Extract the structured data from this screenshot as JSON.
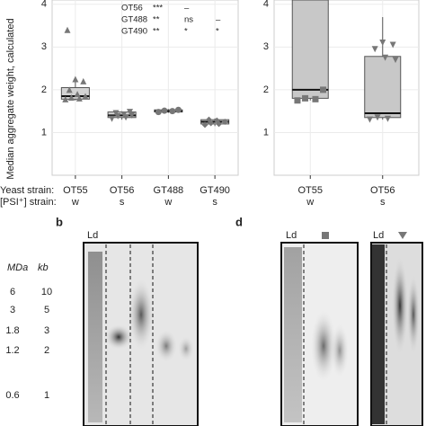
{
  "chart_data": [
    {
      "type": "box",
      "y_label": "Median aggregate weight, calculated",
      "categories": [
        "OT55",
        "OT56",
        "GT488",
        "GT490"
      ],
      "psi": [
        "w",
        "s",
        "w",
        "s"
      ],
      "ylim": [
        0,
        4.1
      ],
      "yticks": [
        1,
        2,
        3,
        4
      ],
      "color": "#d3d3d3",
      "markers": [
        "triangle",
        "triangle-down",
        "circle",
        "diamond"
      ],
      "marker_color": "#777777",
      "boxes": [
        {
          "whisker_low": 1.75,
          "q1": 1.78,
          "median": 1.85,
          "q3": 2.05,
          "whisker_high": 2.25
        },
        {
          "whisker_low": 1.3,
          "q1": 1.35,
          "median": 1.4,
          "q3": 1.48,
          "whisker_high": 1.5
        },
        {
          "whisker_low": 1.46,
          "q1": 1.48,
          "median": 1.5,
          "q3": 1.53,
          "whisker_high": 1.55
        },
        {
          "whisker_low": 1.15,
          "q1": 1.2,
          "median": 1.25,
          "q3": 1.3,
          "whisker_high": 1.33
        }
      ],
      "points": [
        [
          1.78,
          1.8,
          1.82,
          1.85,
          1.9,
          2.0,
          2.2,
          2.25,
          3.4
        ],
        [
          1.32,
          1.35,
          1.38,
          1.4,
          1.42,
          1.45,
          1.48
        ],
        [
          1.48,
          1.5,
          1.51,
          1.53
        ],
        [
          1.18,
          1.2,
          1.22,
          1.25,
          1.28,
          1.3
        ]
      ],
      "table": [
        [
          "OT56",
          "***",
          "–"
        ],
        [
          "GT488",
          "**",
          "ns",
          "–"
        ],
        [
          "GT490",
          "**",
          "*",
          "*"
        ]
      ]
    },
    {
      "type": "box",
      "categories": [
        "OT55",
        "OT56"
      ],
      "psi": [
        "w",
        "s"
      ],
      "ylim": [
        0,
        4.1
      ],
      "yticks": [
        1,
        2,
        3,
        4
      ],
      "color": "#c8c8c8",
      "markers": [
        "square",
        "triangle-down"
      ],
      "marker_color": "#777777",
      "boxes": [
        {
          "whisker_low": 1.75,
          "q1": 1.8,
          "median": 2.0,
          "q3": 4.1,
          "whisker_high": 4.1
        },
        {
          "whisker_low": 1.3,
          "q1": 1.35,
          "median": 1.45,
          "q3": 2.78,
          "whisker_high": 3.7
        }
      ],
      "points": [
        [
          1.75,
          1.78,
          1.8,
          2.0
        ],
        [
          1.3,
          1.32,
          1.35,
          2.7,
          2.75,
          2.95,
          3.05,
          3.1
        ]
      ]
    }
  ],
  "row_labels": [
    "Yeast strain:",
    "[PSI⁺] strain:"
  ],
  "gel_b": {
    "panel": "b",
    "ladder": "Ld",
    "units": [
      "MDa",
      "kb"
    ],
    "markers": [
      [
        "6",
        "10"
      ],
      [
        "3",
        "5"
      ],
      [
        "1.8",
        "3"
      ],
      [
        "1.2",
        "2"
      ],
      [
        "0.6",
        "1"
      ]
    ]
  },
  "gel_d": {
    "panel": "d",
    "ladders": [
      "Ld",
      "Ld"
    ]
  }
}
